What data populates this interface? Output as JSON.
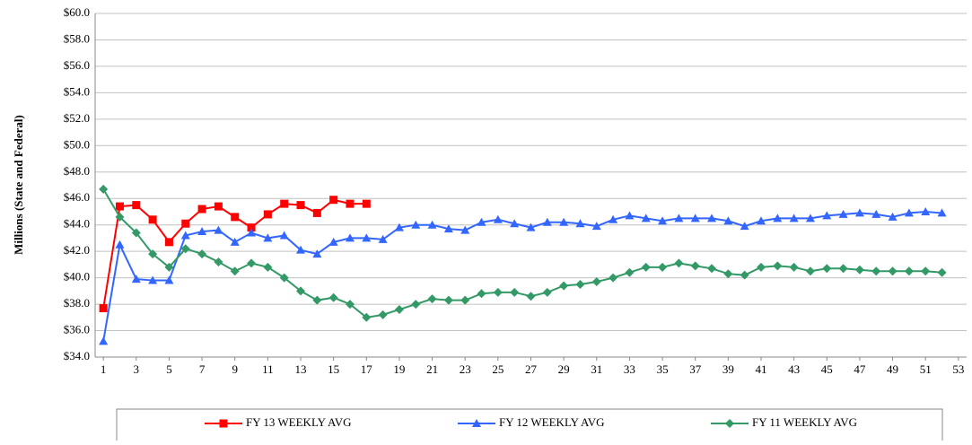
{
  "chart_data": {
    "type": "line",
    "y_label": "Millions (State and Federal)",
    "x": [
      1,
      2,
      3,
      4,
      5,
      6,
      7,
      8,
      9,
      10,
      11,
      12,
      13,
      14,
      15,
      16,
      17,
      18,
      19,
      20,
      21,
      22,
      23,
      24,
      25,
      26,
      27,
      28,
      29,
      30,
      31,
      32,
      33,
      34,
      35,
      36,
      37,
      38,
      39,
      40,
      41,
      42,
      43,
      44,
      45,
      46,
      47,
      48,
      49,
      50,
      51,
      52
    ],
    "xlim": [
      0.5,
      53.5
    ],
    "xticks": [
      1,
      3,
      5,
      7,
      9,
      11,
      13,
      15,
      17,
      19,
      21,
      23,
      25,
      27,
      29,
      31,
      33,
      35,
      37,
      39,
      41,
      43,
      45,
      47,
      49,
      51,
      53
    ],
    "ylim": [
      34,
      60
    ],
    "yticks": [
      {
        "value": 34,
        "label": "$34.0"
      },
      {
        "value": 36,
        "label": "$36.0"
      },
      {
        "value": 38,
        "label": "$38.0"
      },
      {
        "value": 40,
        "label": "$40.0"
      },
      {
        "value": 42,
        "label": "$42.0"
      },
      {
        "value": 44,
        "label": "$44.0"
      },
      {
        "value": 46,
        "label": "$46.0"
      },
      {
        "value": 48,
        "label": "$48.0"
      },
      {
        "value": 50,
        "label": "$50.0"
      },
      {
        "value": 52,
        "label": "$52.0"
      },
      {
        "value": 54,
        "label": "$54.0"
      },
      {
        "value": 56,
        "label": "$56.0"
      },
      {
        "value": 58,
        "label": "$58.0"
      },
      {
        "value": 60,
        "label": "$60.0"
      }
    ],
    "grid": true,
    "legend": "bottom",
    "series": [
      {
        "name": "FY 13 WEEKLY AVG",
        "color": "#ff0000",
        "marker": "square",
        "values": [
          37.7,
          45.4,
          45.5,
          44.4,
          42.7,
          44.1,
          45.2,
          45.4,
          44.6,
          43.8,
          44.8,
          45.6,
          45.5,
          44.9,
          45.9,
          45.6,
          45.6,
          null,
          null,
          null,
          null,
          null,
          null,
          null,
          null,
          null,
          null,
          null,
          null,
          null,
          null,
          null,
          null,
          null,
          null,
          null,
          null,
          null,
          null,
          null,
          null,
          null,
          null,
          null,
          null,
          null,
          null,
          null,
          null,
          null,
          null,
          null
        ]
      },
      {
        "name": "FY 12 WEEKLY AVG",
        "color": "#3366ff",
        "marker": "triangle",
        "values": [
          35.2,
          42.5,
          39.9,
          39.8,
          39.8,
          43.2,
          43.5,
          43.6,
          42.7,
          43.4,
          43.0,
          43.2,
          42.1,
          41.8,
          42.7,
          43.0,
          43.0,
          42.9,
          43.8,
          44.0,
          44.0,
          43.7,
          43.6,
          44.2,
          44.4,
          44.1,
          43.8,
          44.2,
          44.2,
          44.1,
          43.9,
          44.4,
          44.7,
          44.5,
          44.3,
          44.5,
          44.5,
          44.5,
          44.3,
          43.9,
          44.3,
          44.5,
          44.5,
          44.5,
          44.7,
          44.8,
          44.9,
          44.8,
          44.6,
          44.9,
          45.0,
          44.9
        ]
      },
      {
        "name": "FY 11 WEEKLY AVG",
        "color": "#339966",
        "marker": "diamond",
        "values": [
          46.7,
          44.6,
          43.4,
          41.8,
          40.8,
          42.2,
          41.8,
          41.2,
          40.5,
          41.1,
          40.8,
          40.0,
          39.0,
          38.3,
          38.5,
          38.0,
          37.0,
          37.2,
          37.6,
          38.0,
          38.4,
          38.3,
          38.3,
          38.8,
          38.9,
          38.9,
          38.6,
          38.9,
          39.4,
          39.5,
          39.7,
          40.0,
          40.4,
          40.8,
          40.8,
          41.1,
          40.9,
          40.7,
          40.3,
          40.2,
          40.8,
          40.9,
          40.8,
          40.5,
          40.7,
          40.7,
          40.6,
          40.5,
          40.5,
          40.5,
          40.5,
          40.4
        ]
      }
    ]
  }
}
